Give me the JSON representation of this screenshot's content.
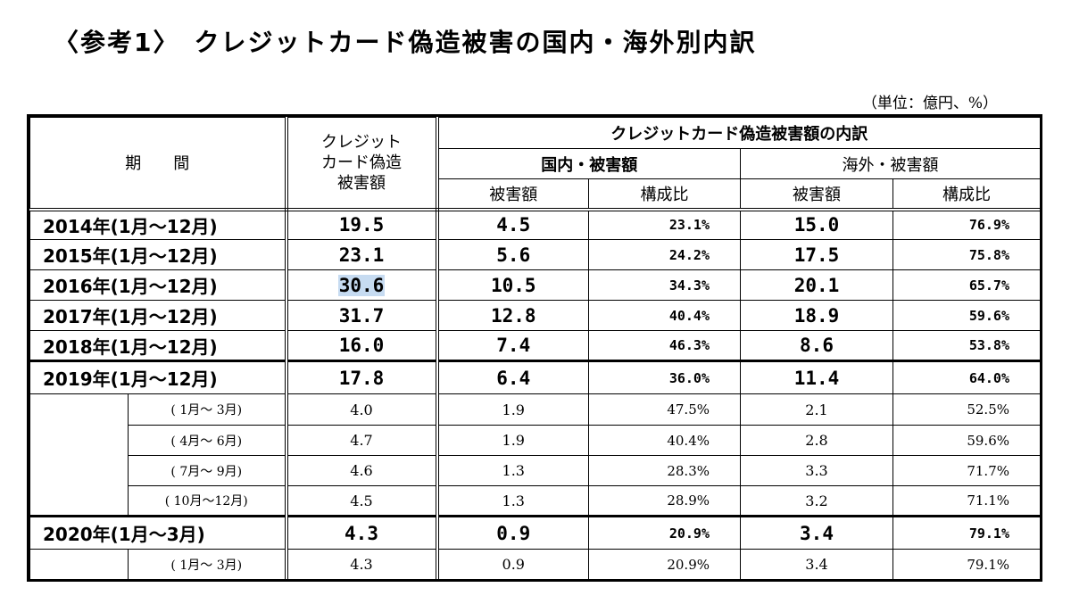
{
  "title": "〈参考1〉　クレジットカード偽造被害の国内・海外別内訳",
  "unit_note": "（単位：億円、%）",
  "headers": {
    "period": "期　　間",
    "total": "クレジット\nカード偽造\n被害額",
    "breakdown": "クレジットカード偽造被害額の内訳",
    "domestic": "国内・被害額",
    "overseas": "海外・被害額",
    "amount": "被害額",
    "ratio": "構成比"
  },
  "rows": [
    {
      "period": "2014年(1月～12月)",
      "total": "19.5",
      "dom_amt": "4.5",
      "dom_pct": "23.1%",
      "ovs_amt": "15.0",
      "ovs_pct": "76.9%"
    },
    {
      "period": "2015年(1月～12月)",
      "total": "23.1",
      "dom_amt": "5.6",
      "dom_pct": "24.2%",
      "ovs_amt": "17.5",
      "ovs_pct": "75.8%"
    },
    {
      "period": "2016年(1月～12月)",
      "total": "30.6",
      "dom_amt": "10.5",
      "dom_pct": "34.3%",
      "ovs_amt": "20.1",
      "ovs_pct": "65.7%"
    },
    {
      "period": "2017年(1月～12月)",
      "total": "31.7",
      "dom_amt": "12.8",
      "dom_pct": "40.4%",
      "ovs_amt": "18.9",
      "ovs_pct": "59.6%"
    },
    {
      "period": "2018年(1月～12月)",
      "total": "16.0",
      "dom_amt": "7.4",
      "dom_pct": "46.3%",
      "ovs_amt": "8.6",
      "ovs_pct": "53.8%"
    },
    {
      "period": "2019年(1月～12月)",
      "total": "17.8",
      "dom_amt": "6.4",
      "dom_pct": "36.0%",
      "ovs_amt": "11.4",
      "ovs_pct": "64.0%"
    },
    {
      "period": "( 1月～ 3月)",
      "total": "4.0",
      "dom_amt": "1.9",
      "dom_pct": "47.5%",
      "ovs_amt": "2.1",
      "ovs_pct": "52.5%"
    },
    {
      "period": "( 4月～ 6月)",
      "total": "4.7",
      "dom_amt": "1.9",
      "dom_pct": "40.4%",
      "ovs_amt": "2.8",
      "ovs_pct": "59.6%"
    },
    {
      "period": "( 7月～ 9月)",
      "total": "4.6",
      "dom_amt": "1.3",
      "dom_pct": "28.3%",
      "ovs_amt": "3.3",
      "ovs_pct": "71.7%"
    },
    {
      "period": "( 10月～12月)",
      "total": "4.5",
      "dom_amt": "1.3",
      "dom_pct": "28.9%",
      "ovs_amt": "3.2",
      "ovs_pct": "71.1%"
    },
    {
      "period": "2020年(1月～3月)",
      "total": "4.3",
      "dom_amt": "0.9",
      "dom_pct": "20.9%",
      "ovs_amt": "3.4",
      "ovs_pct": "79.1%"
    },
    {
      "period": "( 1月～ 3月)",
      "total": "4.3",
      "dom_amt": "0.9",
      "dom_pct": "20.9%",
      "ovs_amt": "3.4",
      "ovs_pct": "79.1%"
    }
  ]
}
